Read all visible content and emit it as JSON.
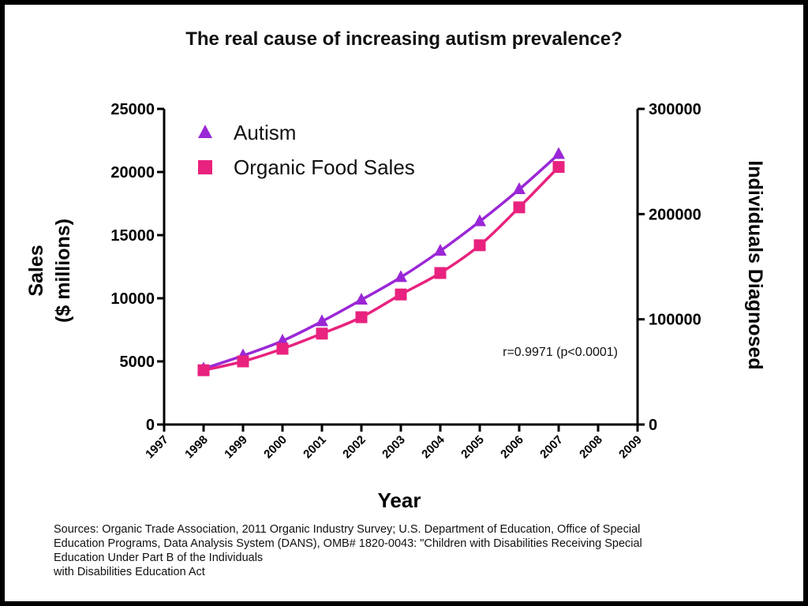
{
  "chart_data": {
    "type": "line",
    "title": "The real cause of increasing autism prevalence?",
    "xlabel": "Year",
    "ylabel_lines": [
      "Sales",
      "($ millions)"
    ],
    "y2label": "Individuals Diagnosed",
    "xlim": [
      1997,
      2009
    ],
    "x_ticks": [
      "1997",
      "1998",
      "1999",
      "2000",
      "2001",
      "2002",
      "2003",
      "2004",
      "2005",
      "2006",
      "2007",
      "2008",
      "2009"
    ],
    "ylim": [
      0,
      25000
    ],
    "y_ticks": [
      "0",
      "5000",
      "10000",
      "15000",
      "20000",
      "25000"
    ],
    "y2lim": [
      0,
      300000
    ],
    "y2_ticks": [
      "0",
      "100000",
      "200000",
      "300000"
    ],
    "legend": [
      "Autism",
      "Organic Food Sales"
    ],
    "legend_position": "top-left",
    "annotation": "r=0.9971 (p<0.0001)",
    "series": [
      {
        "name": "Autism",
        "axis": "right",
        "marker": "triangle",
        "color": "#9a27d6",
        "x": [
          1998,
          1999,
          2000,
          2001,
          2002,
          2003,
          2004,
          2005,
          2006,
          2007
        ],
        "values": [
          53000,
          65500,
          79500,
          98000,
          118500,
          140000,
          165000,
          193000,
          223500,
          257000
        ]
      },
      {
        "name": "Organic Food Sales",
        "axis": "left",
        "marker": "square",
        "color": "#e8227e",
        "x": [
          1998,
          1999,
          2000,
          2001,
          2002,
          2003,
          2004,
          2005,
          2006,
          2007
        ],
        "values": [
          4300,
          5000,
          6000,
          7200,
          8500,
          10300,
          12000,
          14200,
          17200,
          20400
        ]
      }
    ]
  },
  "sources": {
    "line1": "Sources: Organic Trade Association,  2011 Organic Industry Survey; U.S. Department of Education, Office of Special",
    "line2": "Education Programs, Data Analysis System (DANS), OMB# 1820-0043: \"Children with Disabilities Receiving Special",
    "line3": "Education Under Part B of the Individuals",
    "line4": "with Disabilities Education Act"
  }
}
